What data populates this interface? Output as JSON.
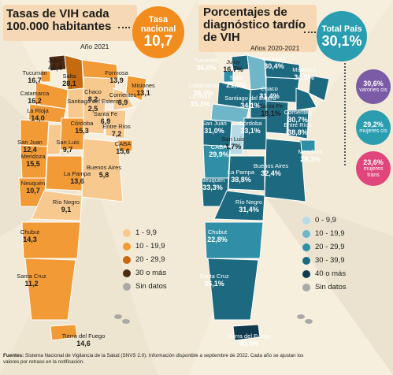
{
  "colors": {
    "hiv_scale": [
      "#f8c98f",
      "#f29a36",
      "#c66a10",
      "#4b2a0f"
    ],
    "diag_scale": [
      "#b6dbe6",
      "#6fb6c9",
      "#2e8fa7",
      "#1d6a80",
      "#103b4f"
    ],
    "no_data": "#a9a9a9",
    "accent_orange": "#f28c1e",
    "accent_teal": "#2a9db0",
    "accent_purple": "#7b5aa6",
    "accent_pink": "#e0457b"
  },
  "chart_data": [
    {
      "type": "choropleth_map",
      "title": "Tasas de VIH cada 100.000 habitantes",
      "year": "Año 2021",
      "national_label": "Tasa nacional",
      "national_value": "10,7",
      "legend": [
        {
          "label": "1 - 9,9",
          "color": "#f8c98f"
        },
        {
          "label": "10 - 19,9",
          "color": "#f29a36"
        },
        {
          "label": "20 - 29,9",
          "color": "#c66a10"
        },
        {
          "label": "30 o más",
          "color": "#4b2a0f"
        },
        {
          "label": "Sin datos",
          "color": "#a9a9a9"
        }
      ],
      "provinces": [
        {
          "name": "Jujuy",
          "value": "40,4",
          "color": "#4b2a0f"
        },
        {
          "name": "Salta",
          "value": "28,1",
          "color": "#c66a10"
        },
        {
          "name": "Formosa",
          "value": "13,9",
          "color": "#f29a36"
        },
        {
          "name": "Tucumán",
          "value": "16,7",
          "color": "#f29a36"
        },
        {
          "name": "Chaco",
          "value": "8,2",
          "color": "#f8c98f"
        },
        {
          "name": "Misiones",
          "value": "13,1",
          "color": "#f29a36"
        },
        {
          "name": "Catamarca",
          "value": "16,2",
          "color": "#f29a36"
        },
        {
          "name": "Santiago del Estero",
          "value": "2,5",
          "color": "#f8c98f"
        },
        {
          "name": "Corrientes",
          "value": "8,9",
          "color": "#f8c98f"
        },
        {
          "name": "La Rioja",
          "value": "14,0",
          "color": "#f29a36"
        },
        {
          "name": "Santa Fe",
          "value": "6,9",
          "color": "#f8c98f"
        },
        {
          "name": "San Juan",
          "value": "12,4",
          "color": "#f29a36"
        },
        {
          "name": "Córdoba",
          "value": "15,3",
          "color": "#f29a36"
        },
        {
          "name": "Entre Ríos",
          "value": "7,2",
          "color": "#f8c98f"
        },
        {
          "name": "San Luis",
          "value": "9,7",
          "color": "#f8c98f"
        },
        {
          "name": "CABA",
          "value": "15,6",
          "color": "#f29a36"
        },
        {
          "name": "Mendoza",
          "value": "15,5",
          "color": "#f29a36"
        },
        {
          "name": "Buenos Aires",
          "value": "5,8",
          "color": "#f8c98f"
        },
        {
          "name": "La Pampa",
          "value": "13,6",
          "color": "#f29a36"
        },
        {
          "name": "Neuquén",
          "value": "10,7",
          "color": "#f29a36"
        },
        {
          "name": "Río Negro",
          "value": "9,1",
          "color": "#f8c98f"
        },
        {
          "name": "Chubut",
          "value": "14,3",
          "color": "#f29a36"
        },
        {
          "name": "Santa Cruz",
          "value": "11,2",
          "color": "#f29a36"
        },
        {
          "name": "Tierra del Fuego",
          "value": "14,6",
          "color": "#f29a36"
        }
      ]
    },
    {
      "type": "choropleth_map",
      "title": "Porcentajes de diagnóstico tardío de VIH",
      "year": "Años 2020-2021",
      "national_label": "Total País",
      "national_value": "30,1%",
      "legend": [
        {
          "label": "0 - 9,9",
          "color": "#b6dbe6"
        },
        {
          "label": "10 - 19,9",
          "color": "#6fb6c9"
        },
        {
          "label": "20 - 29,9",
          "color": "#2e8fa7"
        },
        {
          "label": "30 - 39,9",
          "color": "#1d6a80"
        },
        {
          "label": "40 o más",
          "color": "#103b4f"
        },
        {
          "label": "Sin datos",
          "color": "#a9a9a9"
        }
      ],
      "breakdown": [
        {
          "value": "30,6%",
          "label": "varones cis",
          "color": "#7b5aa6"
        },
        {
          "value": "29,2%",
          "label": "mujeres cis",
          "color": "#2a9db0"
        },
        {
          "value": "23,6%",
          "label": "mujeres trans",
          "color": "#e0457b"
        }
      ],
      "provinces": [
        {
          "name": "Tucumán",
          "value": "36,0%",
          "color": "#1d6a80"
        },
        {
          "name": "Jujuy",
          "value": "16,7%",
          "color": "#6fb6c9"
        },
        {
          "name": "Formosa",
          "value": "30,4%",
          "color": "#1d6a80"
        },
        {
          "name": "Salta",
          "value": "21,5%",
          "color": "#2e8fa7"
        },
        {
          "name": "Misiones",
          "value": "34,0%",
          "color": "#1d6a80"
        },
        {
          "name": "Catamarca",
          "value": "38,4%",
          "color": "#1d6a80"
        },
        {
          "name": "Chaco",
          "value": "31,4%",
          "color": "#1d6a80"
        },
        {
          "name": "Santiago del Estero",
          "value": "34,1%",
          "color": "#1d6a80"
        },
        {
          "name": "La Rioja",
          "value": "35,3%",
          "color": "#1d6a80"
        },
        {
          "name": "Santa Fe",
          "value": "18,1%",
          "color": "#6fb6c9"
        },
        {
          "name": "Corrientes",
          "value": "30,7%",
          "color": "#1d6a80"
        },
        {
          "name": "San Juan",
          "value": "31,0%",
          "color": "#1d6a80"
        },
        {
          "name": "Córdoba",
          "value": "33,1%",
          "color": "#1d6a80"
        },
        {
          "name": "Entre Ríos",
          "value": "38,8%",
          "color": "#1d6a80"
        },
        {
          "name": "San Luis",
          "value": "1,7%",
          "color": "#b6dbe6"
        },
        {
          "name": "Mendoza",
          "value": "28,3%",
          "color": "#2e8fa7"
        },
        {
          "name": "CABA",
          "value": "29,9%",
          "color": "#2e8fa7"
        },
        {
          "name": "La Pampa",
          "value": "38,8%",
          "color": "#1d6a80"
        },
        {
          "name": "Buenos Aires",
          "value": "32,4%",
          "color": "#1d6a80"
        },
        {
          "name": "Neuquén",
          "value": "33,3%",
          "color": "#1d6a80"
        },
        {
          "name": "Río Negro",
          "value": "31,4%",
          "color": "#1d6a80"
        },
        {
          "name": "Chubut",
          "value": "22,8%",
          "color": "#2e8fa7"
        },
        {
          "name": "Santa Cruz",
          "value": "36,1%",
          "color": "#1d6a80"
        },
        {
          "name": "Tierra del Fuego",
          "value": "40,4%",
          "color": "#103b4f"
        }
      ]
    }
  ],
  "footnote": {
    "label": "Fuentes:",
    "text": "Sistema Nacional de Vigilancia de la Salud (SNVS 2.0). Información disponible a septiembre de 2022. Cada año se ajustan los valores por retraso en la notificación."
  }
}
